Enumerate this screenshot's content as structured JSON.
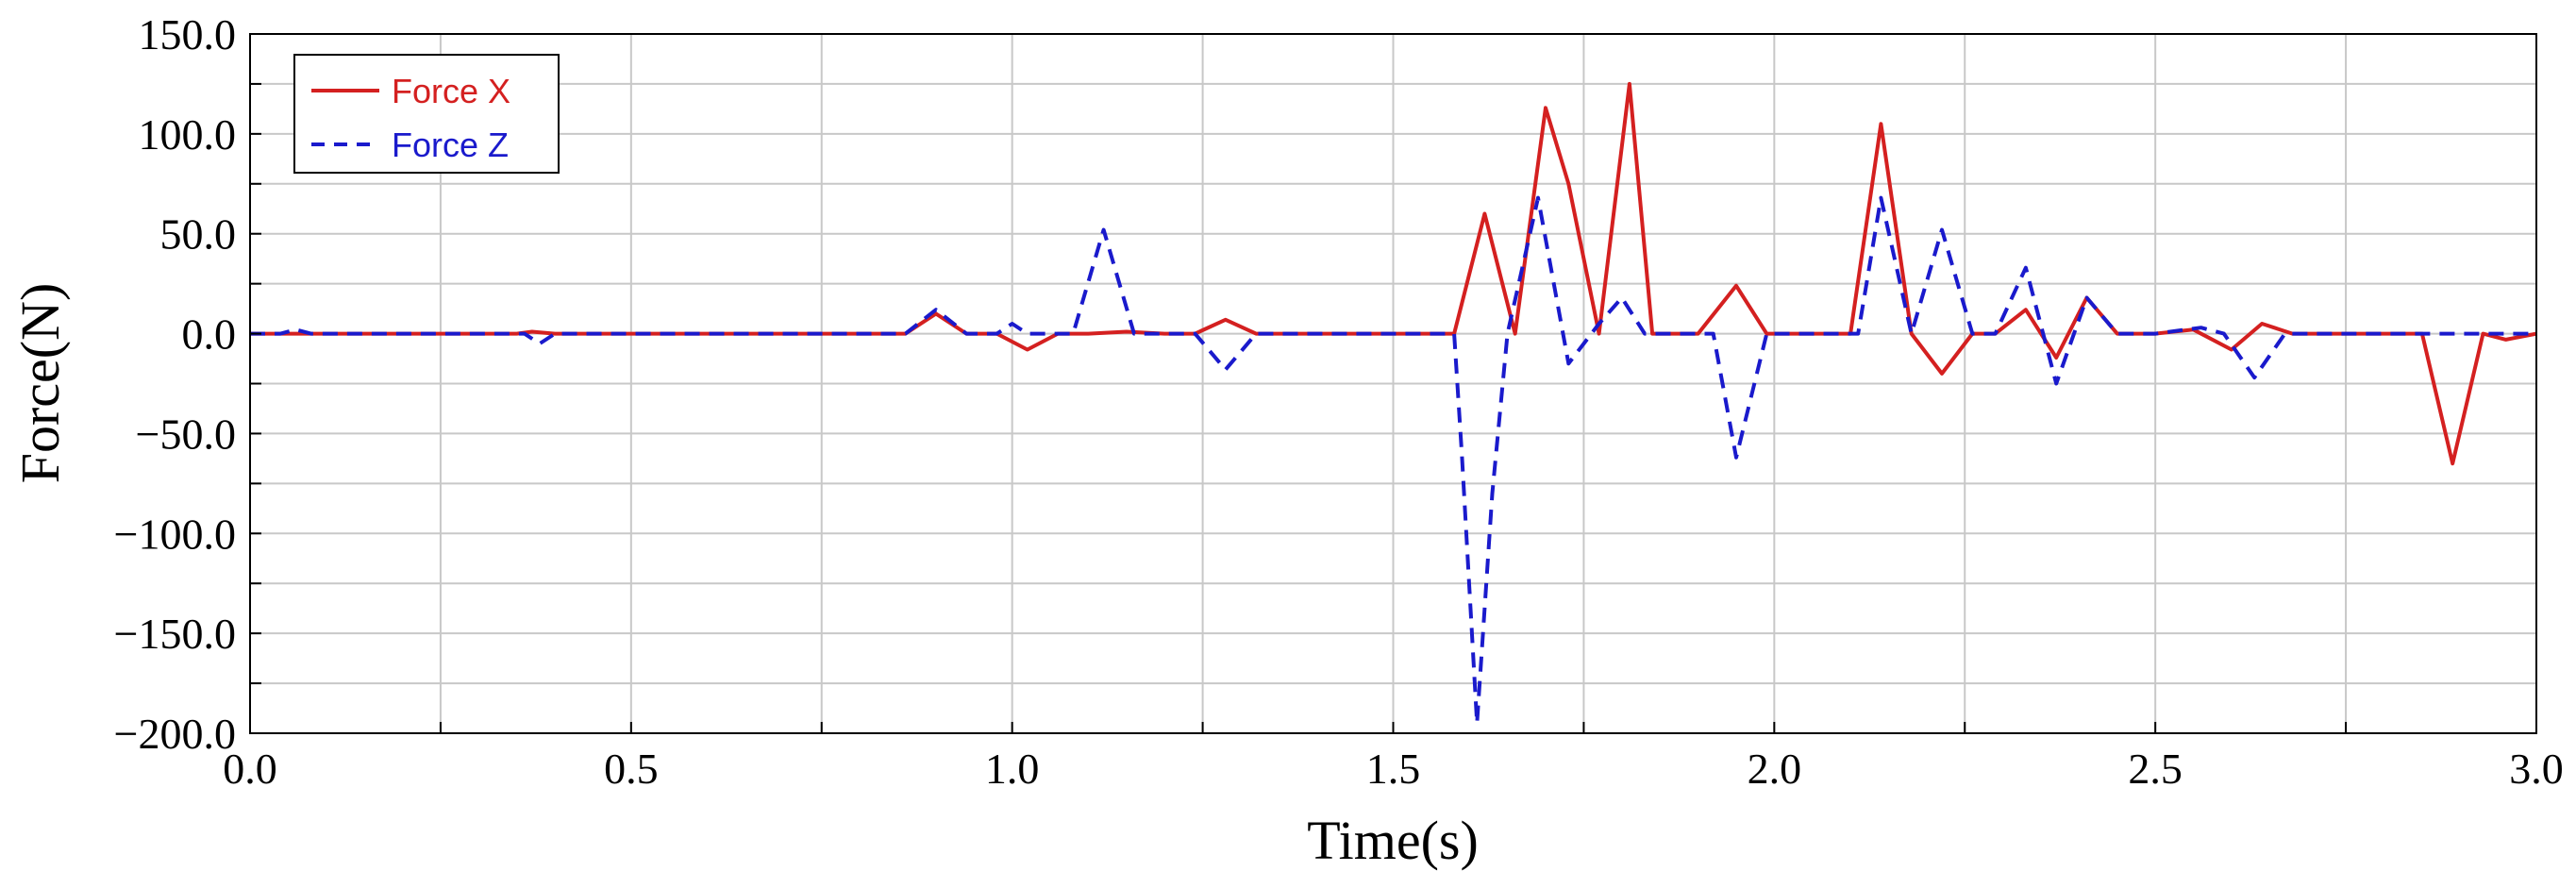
{
  "chart_data": {
    "type": "line",
    "xlabel": "Time(s)",
    "ylabel": "Force(N)",
    "xlim": [
      0.0,
      3.0
    ],
    "ylim": [
      -200.0,
      150.0
    ],
    "grid": true,
    "legend_position": "top-left",
    "x_ticks": [
      0.0,
      0.5,
      1.0,
      1.5,
      2.0,
      2.5,
      3.0
    ],
    "x_tick_labels": [
      "0.0",
      "0.5",
      "1.0",
      "1.5",
      "2.0",
      "2.5",
      "3.0"
    ],
    "y_ticks": [
      150.0,
      100.0,
      50.0,
      0.0,
      -50.0,
      -100.0,
      -150.0,
      -200.0
    ],
    "y_tick_labels": [
      "150.0",
      "100.0",
      "50.0",
      "0.0",
      "−50.0",
      "−100.0",
      "−150.0",
      "−200.0"
    ],
    "series": [
      {
        "name": "Force X",
        "color": "#d42020",
        "style": "solid",
        "x": [
          0.0,
          0.35,
          0.37,
          0.4,
          0.86,
          0.9,
          0.94,
          0.98,
          1.02,
          1.06,
          1.1,
          1.15,
          1.2,
          1.24,
          1.28,
          1.32,
          1.58,
          1.62,
          1.66,
          1.7,
          1.73,
          1.77,
          1.81,
          1.84,
          1.9,
          1.95,
          1.99,
          2.1,
          2.14,
          2.18,
          2.22,
          2.26,
          2.29,
          2.33,
          2.37,
          2.41,
          2.45,
          2.5,
          2.55,
          2.6,
          2.64,
          2.68,
          2.85,
          2.89,
          2.93,
          2.96,
          3.0
        ],
        "y": [
          0,
          0,
          1,
          0,
          0,
          10,
          0,
          0,
          -8,
          0,
          0,
          1,
          0,
          0,
          7,
          0,
          0,
          60,
          0,
          113,
          75,
          0,
          125,
          0,
          0,
          24,
          0,
          0,
          105,
          0,
          -20,
          0,
          0,
          12,
          -12,
          18,
          0,
          0,
          2,
          -8,
          5,
          0,
          0,
          -65,
          0,
          -3,
          0
        ]
      },
      {
        "name": "Force Z",
        "color": "#1a1acc",
        "style": "dashed",
        "x": [
          0.0,
          0.04,
          0.06,
          0.08,
          0.36,
          0.38,
          0.4,
          0.86,
          0.9,
          0.94,
          0.98,
          1.0,
          1.02,
          1.05,
          1.08,
          1.12,
          1.16,
          1.2,
          1.24,
          1.28,
          1.32,
          1.58,
          1.59,
          1.61,
          1.63,
          1.65,
          1.69,
          1.73,
          1.77,
          1.8,
          1.83,
          1.92,
          1.95,
          1.99,
          2.11,
          2.14,
          2.18,
          2.22,
          2.26,
          2.29,
          2.33,
          2.37,
          2.41,
          2.45,
          2.5,
          2.56,
          2.59,
          2.63,
          2.67,
          3.0
        ],
        "y": [
          0,
          0,
          2,
          0,
          0,
          -5,
          0,
          0,
          12,
          0,
          0,
          5,
          0,
          0,
          0,
          52,
          0,
          0,
          0,
          -18,
          0,
          0,
          -60,
          -195,
          -80,
          0,
          68,
          -15,
          5,
          18,
          0,
          0,
          -62,
          0,
          0,
          68,
          0,
          52,
          0,
          0,
          33,
          -25,
          18,
          0,
          0,
          3,
          0,
          -22,
          0,
          0
        ]
      }
    ]
  }
}
